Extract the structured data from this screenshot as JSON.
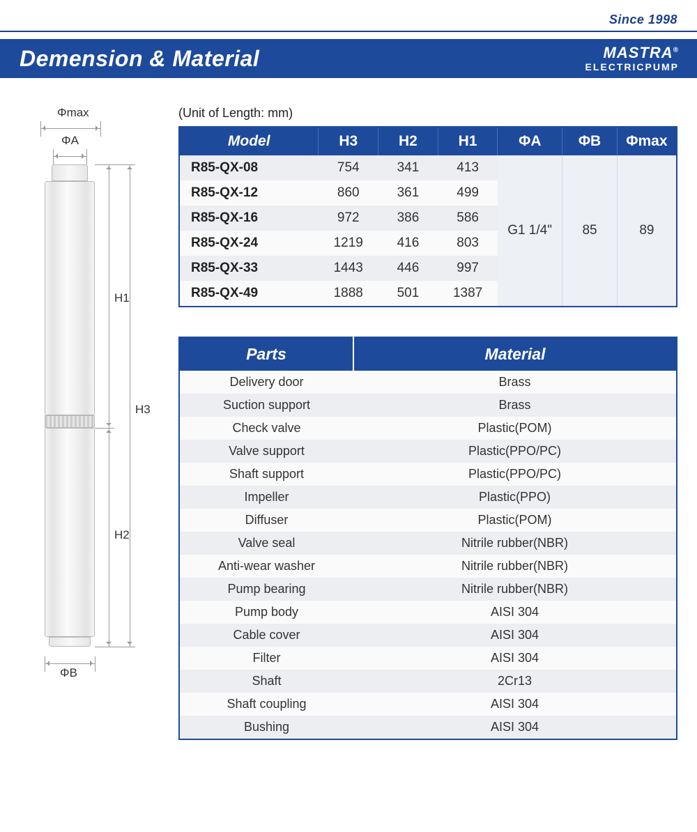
{
  "since": "Since 1998",
  "brand_top": "MASTRA",
  "brand_reg": "®",
  "brand_bot": "ELECTRICPUMP",
  "title": "Demension & Material",
  "unit_note": "(Unit of Length: mm)",
  "diagram": {
    "phimax": "Φmax",
    "phia": "ΦA",
    "phib": "ΦB",
    "h1": "H1",
    "h2": "H2",
    "h3": "H3"
  },
  "tbl1": {
    "headers": [
      "Model",
      "H3",
      "H2",
      "H1",
      "ΦA",
      "ΦB",
      "Φmax"
    ],
    "col_widths": [
      "28%",
      "12%",
      "12%",
      "12%",
      "13%",
      "11%",
      "12%"
    ],
    "rows": [
      {
        "model": "R85-QX-08",
        "h3": "754",
        "h2": "341",
        "h1": "413"
      },
      {
        "model": "R85-QX-12",
        "h3": "860",
        "h2": "361",
        "h1": "499"
      },
      {
        "model": "R85-QX-16",
        "h3": "972",
        "h2": "386",
        "h1": "586"
      },
      {
        "model": "R85-QX-24",
        "h3": "1219",
        "h2": "416",
        "h1": "803"
      },
      {
        "model": "R85-QX-33",
        "h3": "1443",
        "h2": "446",
        "h1": "997"
      },
      {
        "model": "R85-QX-49",
        "h3": "1888",
        "h2": "501",
        "h1": "1387"
      }
    ],
    "merged": {
      "phia": "G1 1/4\"",
      "phib": "85",
      "phimax": "89"
    }
  },
  "tbl2": {
    "headers": [
      "Parts",
      "Material"
    ],
    "rows": [
      {
        "part": "Delivery door",
        "mat": "Brass"
      },
      {
        "part": "Suction support",
        "mat": "Brass"
      },
      {
        "part": "Check valve",
        "mat": "Plastic(POM)"
      },
      {
        "part": "Valve support",
        "mat": "Plastic(PPO/PC)"
      },
      {
        "part": "Shaft support",
        "mat": "Plastic(PPO/PC)"
      },
      {
        "part": "Impeller",
        "mat": "Plastic(PPO)"
      },
      {
        "part": "Diffuser",
        "mat": "Plastic(POM)"
      },
      {
        "part": "Valve seal",
        "mat": "Nitrile rubber(NBR)"
      },
      {
        "part": "Anti-wear washer",
        "mat": "Nitrile rubber(NBR)"
      },
      {
        "part": "Pump bearing",
        "mat": "Nitrile rubber(NBR)"
      },
      {
        "part": "Pump body",
        "mat": "AISI 304"
      },
      {
        "part": "Cable cover",
        "mat": "AISI 304"
      },
      {
        "part": "Filter",
        "mat": "AISI 304"
      },
      {
        "part": "Shaft",
        "mat": "2Cr13"
      },
      {
        "part": "Shaft coupling",
        "mat": "AISI 304"
      },
      {
        "part": "Bushing",
        "mat": "AISI 304"
      }
    ]
  },
  "colors": {
    "brand_blue": "#1e4a9c",
    "row_alt": "#eceef1",
    "row_base": "#fafafa",
    "text": "#333333"
  }
}
